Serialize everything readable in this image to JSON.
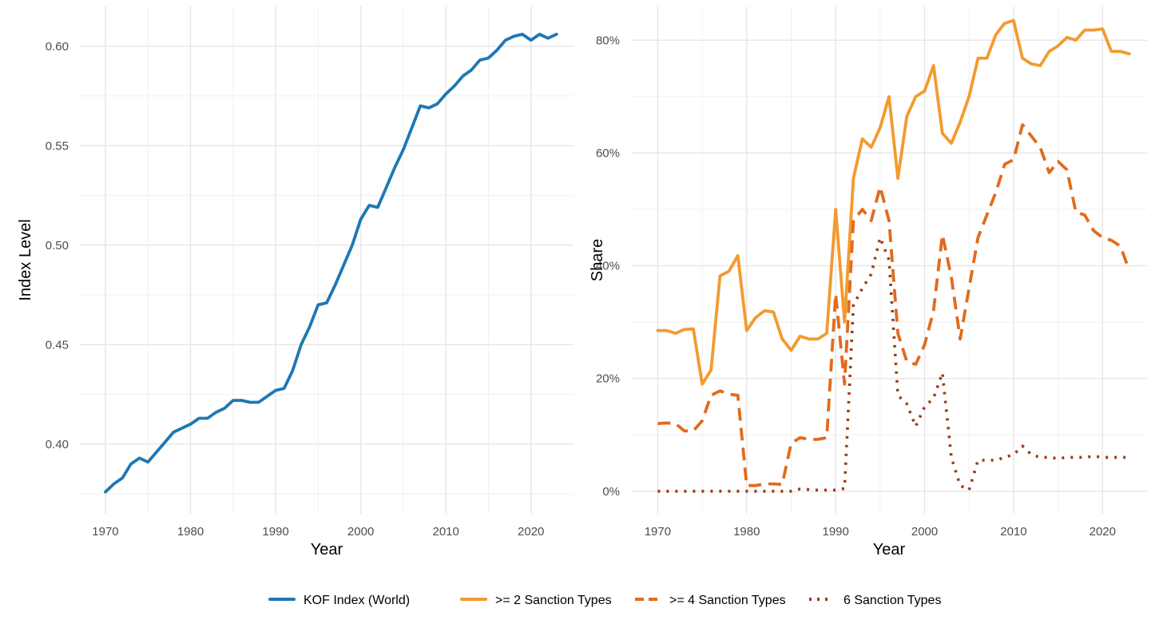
{
  "chart_data": [
    {
      "type": "line",
      "panel": "left",
      "xlabel": "Year",
      "ylabel": "Index Level",
      "xlim": [
        1967,
        2025
      ],
      "ylim": [
        0.365,
        0.62
      ],
      "x_ticks": [
        1970,
        1980,
        1990,
        2000,
        2010,
        2020
      ],
      "x_tick_labels": [
        "1970",
        "1980",
        "1990",
        "2000",
        "2010",
        "2020"
      ],
      "y_ticks": [
        0.4,
        0.45,
        0.5,
        0.55,
        0.6
      ],
      "y_tick_labels": [
        "0.40",
        "0.45",
        "0.50",
        "0.55",
        "0.60"
      ],
      "grid": true,
      "series": [
        {
          "name": "KOF Index (World)",
          "color": "#1f77b4",
          "dash": "solid",
          "x": [
            1970,
            1971,
            1972,
            1973,
            1974,
            1975,
            1976,
            1977,
            1978,
            1979,
            1980,
            1981,
            1982,
            1983,
            1984,
            1985,
            1986,
            1987,
            1988,
            1989,
            1990,
            1991,
            1992,
            1993,
            1994,
            1995,
            1996,
            1997,
            1998,
            1999,
            2000,
            2001,
            2002,
            2003,
            2004,
            2005,
            2006,
            2007,
            2008,
            2009,
            2010,
            2011,
            2012,
            2013,
            2014,
            2015,
            2016,
            2017,
            2018,
            2019,
            2020,
            2021,
            2022,
            2023
          ],
          "values": [
            0.376,
            0.38,
            0.383,
            0.39,
            0.393,
            0.391,
            0.396,
            0.401,
            0.406,
            0.408,
            0.41,
            0.413,
            0.413,
            0.416,
            0.418,
            0.422,
            0.422,
            0.421,
            0.421,
            0.424,
            0.427,
            0.428,
            0.437,
            0.45,
            0.459,
            0.47,
            0.471,
            0.48,
            0.49,
            0.5,
            0.513,
            0.52,
            0.519,
            0.529,
            0.539,
            0.548,
            0.559,
            0.57,
            0.569,
            0.571,
            0.576,
            0.58,
            0.585,
            0.588,
            0.593,
            0.594,
            0.598,
            0.603,
            0.605,
            0.606,
            0.603,
            0.606,
            0.604,
            0.606
          ]
        }
      ]
    },
    {
      "type": "line",
      "panel": "right",
      "xlabel": "Year",
      "ylabel": "Share",
      "xlim": [
        1967,
        2025
      ],
      "ylim": [
        -0.04,
        0.86
      ],
      "x_ticks": [
        1970,
        1980,
        1990,
        2000,
        2010,
        2020
      ],
      "x_tick_labels": [
        "1970",
        "1980",
        "1990",
        "2000",
        "2010",
        "2020"
      ],
      "y_ticks": [
        0,
        0.2,
        0.4,
        0.6,
        0.8
      ],
      "y_tick_labels": [
        "0%",
        "20%",
        "40%",
        "60%",
        "80%"
      ],
      "grid": true,
      "series": [
        {
          "name": ">= 2 Sanction Types",
          "color": "#f39a2f",
          "dash": "solid",
          "x": [
            1970,
            1971,
            1972,
            1973,
            1974,
            1975,
            1976,
            1977,
            1978,
            1979,
            1980,
            1981,
            1982,
            1983,
            1984,
            1985,
            1986,
            1987,
            1988,
            1989,
            1990,
            1991,
            1992,
            1993,
            1994,
            1995,
            1996,
            1997,
            1998,
            1999,
            2000,
            2001,
            2002,
            2003,
            2004,
            2005,
            2006,
            2007,
            2008,
            2009,
            2010,
            2011,
            2012,
            2013,
            2014,
            2015,
            2016,
            2017,
            2018,
            2019,
            2020,
            2021,
            2022,
            2023
          ],
          "values": [
            0.285,
            0.285,
            0.28,
            0.287,
            0.288,
            0.19,
            0.215,
            0.382,
            0.39,
            0.418,
            0.285,
            0.308,
            0.32,
            0.318,
            0.27,
            0.25,
            0.275,
            0.27,
            0.27,
            0.28,
            0.5,
            0.3,
            0.555,
            0.625,
            0.61,
            0.645,
            0.7,
            0.555,
            0.665,
            0.7,
            0.71,
            0.755,
            0.635,
            0.617,
            0.655,
            0.7,
            0.768,
            0.768,
            0.81,
            0.83,
            0.835,
            0.768,
            0.758,
            0.755,
            0.78,
            0.79,
            0.805,
            0.8,
            0.818,
            0.818,
            0.82,
            0.78,
            0.78,
            0.776
          ]
        },
        {
          "name": ">= 4 Sanction Types",
          "color": "#e16b1d",
          "dash": "dashed",
          "x": [
            1970,
            1971,
            1972,
            1973,
            1974,
            1975,
            1976,
            1977,
            1978,
            1979,
            1980,
            1981,
            1982,
            1983,
            1984,
            1985,
            1986,
            1987,
            1988,
            1989,
            1990,
            1991,
            1992,
            1993,
            1994,
            1995,
            1996,
            1997,
            1998,
            1999,
            2000,
            2001,
            2002,
            2003,
            2004,
            2005,
            2006,
            2007,
            2008,
            2009,
            2010,
            2011,
            2012,
            2013,
            2014,
            2015,
            2016,
            2017,
            2018,
            2019,
            2020,
            2021,
            2022,
            2023
          ],
          "values": [
            0.12,
            0.121,
            0.12,
            0.107,
            0.107,
            0.125,
            0.17,
            0.178,
            0.172,
            0.17,
            0.01,
            0.01,
            0.013,
            0.013,
            0.012,
            0.085,
            0.095,
            0.092,
            0.092,
            0.095,
            0.35,
            0.19,
            0.48,
            0.5,
            0.48,
            0.54,
            0.48,
            0.28,
            0.23,
            0.225,
            0.26,
            0.32,
            0.455,
            0.38,
            0.27,
            0.36,
            0.45,
            0.49,
            0.53,
            0.58,
            0.588,
            0.65,
            0.63,
            0.61,
            0.565,
            0.585,
            0.57,
            0.495,
            0.49,
            0.462,
            0.45,
            0.445,
            0.435,
            0.392
          ]
        },
        {
          "name": "6 Sanction Types",
          "color": "#9c3a12",
          "dash": "dotted",
          "x": [
            1970,
            1971,
            1972,
            1973,
            1974,
            1975,
            1976,
            1977,
            1978,
            1979,
            1980,
            1981,
            1982,
            1983,
            1984,
            1985,
            1986,
            1987,
            1988,
            1989,
            1990,
            1991,
            1992,
            1993,
            1994,
            1995,
            1996,
            1997,
            1998,
            1999,
            2000,
            2001,
            2002,
            2003,
            2004,
            2005,
            2006,
            2007,
            2008,
            2009,
            2010,
            2011,
            2012,
            2013,
            2014,
            2015,
            2016,
            2017,
            2018,
            2019,
            2020,
            2021,
            2022,
            2023
          ],
          "values": [
            0,
            0,
            0,
            0,
            0,
            0,
            0,
            0,
            0,
            0,
            0,
            0,
            0,
            0,
            0,
            0,
            0.004,
            0.003,
            0.002,
            0.002,
            0.002,
            0.005,
            0.33,
            0.36,
            0.385,
            0.45,
            0.41,
            0.17,
            0.155,
            0.115,
            0.15,
            0.165,
            0.21,
            0.06,
            0.01,
            0.002,
            0.055,
            0.055,
            0.055,
            0.06,
            0.065,
            0.08,
            0.065,
            0.06,
            0.06,
            0.058,
            0.06,
            0.06,
            0.06,
            0.062,
            0.06,
            0.06,
            0.06,
            0.06
          ]
        }
      ]
    }
  ],
  "legend": {
    "placement": "bottom",
    "items": [
      {
        "label": "KOF Index (World)",
        "color": "#1f77b4",
        "dash": "solid"
      },
      {
        "label": ">= 2 Sanction Types",
        "color": "#f39a2f",
        "dash": "solid"
      },
      {
        "label": ">= 4 Sanction Types",
        "color": "#e16b1d",
        "dash": "dashed"
      },
      {
        "label": "6 Sanction Types",
        "color": "#9c3a12",
        "dash": "dotted"
      }
    ]
  }
}
